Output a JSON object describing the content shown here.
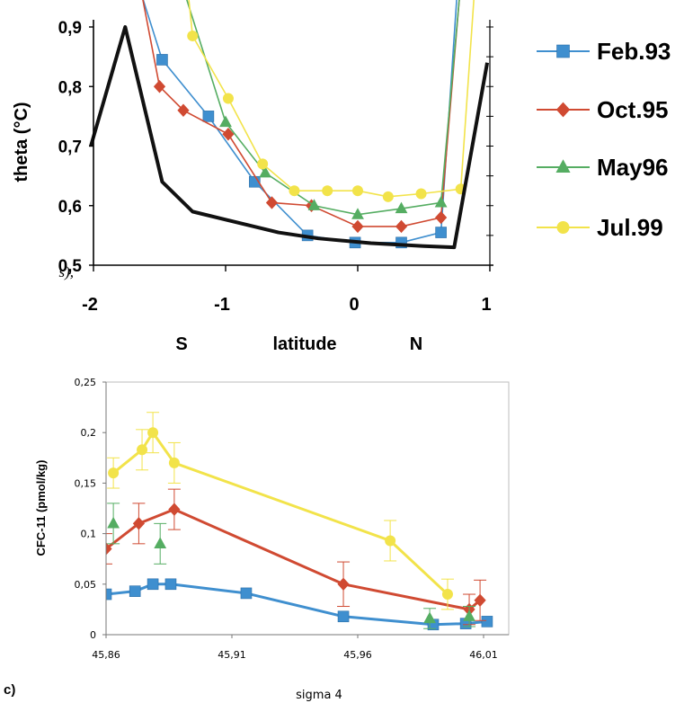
{
  "figure": {
    "fragment_text": "s),",
    "panel_label": "c)"
  },
  "chart_data": [
    {
      "type": "line",
      "ylabel": "theta  (°C)",
      "xlabel": "latitude",
      "x_south_label": "S",
      "x_north_label": "N",
      "xlim": [
        -2,
        1
      ],
      "ylim": [
        0.5,
        0.9
      ],
      "x_ticks": [
        "-2",
        "-1",
        "0",
        "1"
      ],
      "x_tick_values": [
        -2,
        -1,
        0,
        1
      ],
      "y_ticks": [
        "0,5",
        "0,6",
        "0,7",
        "0,8",
        "0,9"
      ],
      "y_tick_values": [
        0.5,
        0.6,
        0.7,
        0.8,
        0.9
      ],
      "grid": false,
      "legend_position": "right",
      "bottom_profile": {
        "color": "#111111",
        "x": [
          -2.02,
          -1.76,
          -1.48,
          -1.25,
          -0.6,
          -0.3,
          0.1,
          0.5,
          0.73,
          0.98
        ],
        "y": [
          0.7,
          0.9,
          0.64,
          0.59,
          0.555,
          0.545,
          0.537,
          0.532,
          0.53,
          0.84
        ]
      },
      "series": [
        {
          "name": "Feb.93",
          "color": "#3f8fcf",
          "marker": "square",
          "x": [
            -1.63,
            -1.48,
            -1.13,
            -0.78,
            -0.38,
            -0.02,
            0.33,
            0.63,
            0.75
          ],
          "y": [
            0.95,
            0.845,
            0.75,
            0.64,
            0.55,
            0.538,
            0.538,
            0.555,
            0.95
          ]
        },
        {
          "name": "Oct.95",
          "color": "#d04a32",
          "marker": "diamond",
          "x": [
            -1.63,
            -1.5,
            -1.32,
            -0.98,
            -0.65,
            -0.35,
            0.0,
            0.33,
            0.63,
            0.77
          ],
          "y": [
            0.95,
            0.8,
            0.76,
            0.72,
            0.605,
            0.6,
            0.565,
            0.565,
            0.58,
            0.95
          ]
        },
        {
          "name": "May96",
          "color": "#55ad62",
          "marker": "triangle",
          "x": [
            -1.3,
            -1.0,
            -0.7,
            -0.33,
            0.0,
            0.33,
            0.63,
            0.77
          ],
          "y": [
            0.95,
            0.74,
            0.655,
            0.6,
            0.585,
            0.595,
            0.605,
            0.95
          ]
        },
        {
          "name": "Jul.99",
          "color": "#f2e34a",
          "marker": "circle",
          "x": [
            -1.28,
            -1.25,
            -0.98,
            -0.72,
            -0.48,
            -0.23,
            0.0,
            0.23,
            0.48,
            0.78,
            0.88
          ],
          "y": [
            0.95,
            0.885,
            0.78,
            0.67,
            0.625,
            0.625,
            0.625,
            0.615,
            0.62,
            0.628,
            0.95
          ]
        }
      ]
    },
    {
      "type": "line",
      "ylabel": "CFC-11   (pmol/kg)",
      "xlabel": "sigma 4",
      "xlim": [
        45.86,
        46.02
      ],
      "ylim": [
        0,
        0.25
      ],
      "x_ticks": [
        "45,86",
        "45,91",
        "45,96",
        "46,01"
      ],
      "x_tick_values": [
        45.86,
        45.91,
        45.96,
        46.01
      ],
      "y_ticks": [
        "0",
        "0,05",
        "0,1",
        "0,15",
        "0,2",
        "0,25"
      ],
      "y_tick_values": [
        0,
        0.05,
        0.1,
        0.15,
        0.2,
        0.25
      ],
      "grid": false,
      "legend_position": "none",
      "series": [
        {
          "name": "Feb.93",
          "color": "#3f8fcf",
          "marker": "square",
          "x": [
            45.86,
            45.8715,
            45.8786,
            45.8857,
            45.9157,
            45.9543,
            45.99,
            46.0029,
            46.0114
          ],
          "y": [
            0.04,
            0.043,
            0.05,
            0.05,
            0.041,
            0.018,
            0.01,
            0.011,
            0.013
          ],
          "err": [
            0,
            0,
            0,
            0,
            0,
            0,
            0,
            0,
            0
          ]
        },
        {
          "name": "Oct.95",
          "color": "#d04a32",
          "marker": "diamond",
          "x": [
            45.86,
            45.873,
            45.8871,
            45.9543,
            46.0043,
            46.0086
          ],
          "y": [
            0.085,
            0.11,
            0.124,
            0.05,
            0.025,
            0.034
          ],
          "err": [
            0.015,
            0.02,
            0.02,
            0.022,
            0.015,
            0.02
          ]
        },
        {
          "name": "May96",
          "color": "#55ad62",
          "marker": "triangle",
          "x": [
            45.8629,
            45.8815,
            45.9886,
            46.0043
          ],
          "y": [
            0.11,
            0.09,
            0.016,
            0.018
          ],
          "err": [
            0.02,
            0.02,
            0.01,
            0.01
          ]
        },
        {
          "name": "Jul.99",
          "color": "#f2e34a",
          "marker": "circle",
          "x": [
            45.8629,
            45.8743,
            45.8786,
            45.8871,
            45.9729,
            45.9957
          ],
          "y": [
            0.16,
            0.183,
            0.2,
            0.17,
            0.093,
            0.04
          ],
          "err": [
            0.015,
            0.02,
            0.02,
            0.02,
            0.02,
            0.015
          ]
        }
      ]
    }
  ]
}
